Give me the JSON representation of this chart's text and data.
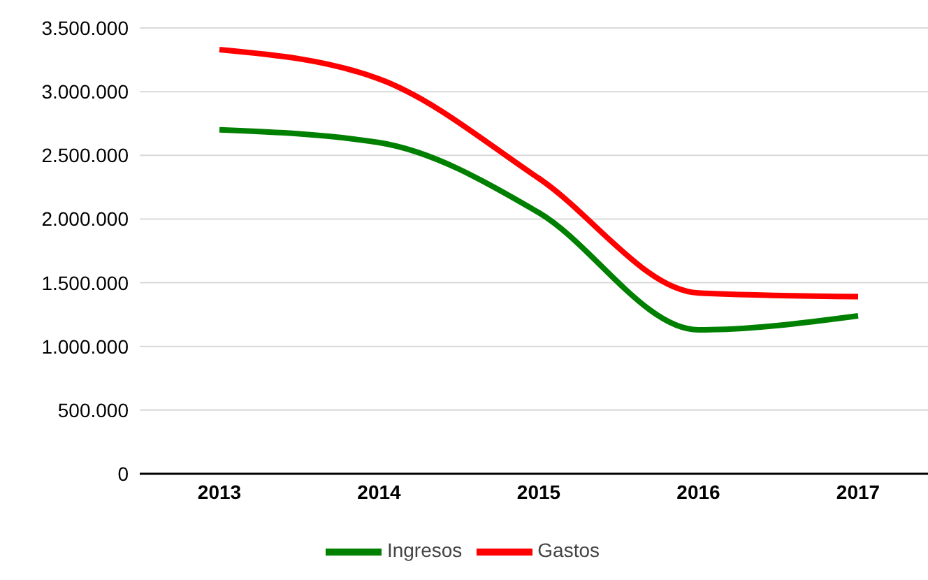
{
  "chart_data": {
    "type": "line",
    "categories": [
      "2013",
      "2014",
      "2015",
      "2016",
      "2017"
    ],
    "series": [
      {
        "name": "Ingresos",
        "color": "#008000",
        "values": [
          2700000,
          2600000,
          2050000,
          1130000,
          1240000
        ]
      },
      {
        "name": "Gastos",
        "color": "#ff0000",
        "values": [
          3330000,
          3100000,
          2320000,
          1420000,
          1390000
        ]
      }
    ],
    "ylim": [
      0,
      3500000
    ],
    "yticks": [
      {
        "value": 0,
        "label": "0"
      },
      {
        "value": 500000,
        "label": "500.000"
      },
      {
        "value": 1000000,
        "label": "1.000.000"
      },
      {
        "value": 1500000,
        "label": "1.500.000"
      },
      {
        "value": 2000000,
        "label": "2.000.000"
      },
      {
        "value": 2500000,
        "label": "2.500.000"
      },
      {
        "value": 3000000,
        "label": "3.000.000"
      },
      {
        "value": 3500000,
        "label": "3.500.000"
      }
    ],
    "grid": "y",
    "legend": "bottom",
    "marker": "none",
    "line_style": "solid"
  }
}
